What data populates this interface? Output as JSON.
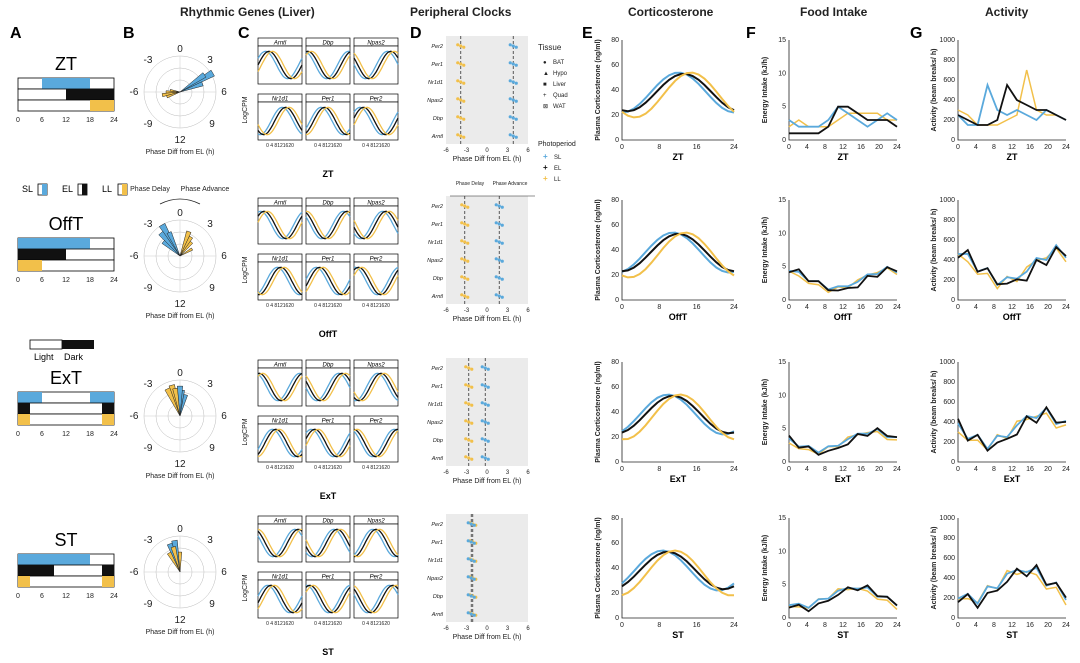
{
  "headers": {
    "rhythmic": "Rhythmic Genes (Liver)",
    "peripheral": "Peripheral Clocks",
    "cort": "Corticosterone",
    "food": "Food Intake",
    "activity": "Activity"
  },
  "panel_labels": [
    "A",
    "B",
    "C",
    "D",
    "E",
    "F",
    "G"
  ],
  "colors": {
    "SL": "#5aa9dc",
    "EL": "#111111",
    "LL": "#f2c04a"
  },
  "schedules": [
    {
      "name": "ZT",
      "bars": {
        "SL": [
          [
            6,
            18
          ]
        ],
        "EL": [
          [
            12,
            24
          ]
        ],
        "LL": [
          [
            18,
            24
          ]
        ]
      }
    },
    {
      "name": "OffT",
      "bars": {
        "SL": [
          [
            0,
            18
          ]
        ],
        "EL": [
          [
            0,
            12
          ]
        ],
        "LL": [
          [
            0,
            6
          ]
        ]
      }
    },
    {
      "name": "ExT",
      "bars": {
        "SL": [
          [
            0,
            6
          ],
          [
            18,
            24
          ]
        ],
        "EL": [
          [
            0,
            3
          ],
          [
            21,
            24
          ]
        ],
        "LL": [
          [
            0,
            3
          ],
          [
            21,
            24
          ]
        ]
      }
    },
    {
      "name": "ST",
      "bars": {
        "SL": [
          [
            0,
            18
          ]
        ],
        "EL": [
          [
            0,
            9
          ],
          [
            21,
            24
          ]
        ],
        "LL": [
          [
            0,
            3
          ],
          [
            21,
            24
          ]
        ]
      }
    }
  ],
  "axisA": [
    "0",
    "6",
    "12",
    "18",
    "24"
  ],
  "legendA": {
    "SL": "SL",
    "EL": "EL",
    "LL": "LL",
    "light": "Light",
    "dark": "Dark"
  },
  "polar": {
    "ticks": [
      "0",
      "3",
      "6",
      "9",
      "12",
      "-9",
      "-6",
      "-3"
    ],
    "xlabel": "Phase Diff from EL (h)",
    "delay": "Phase Delay",
    "advance": "Phase Advance"
  },
  "genes": [
    "Arntl",
    "Dbp",
    "Npas2",
    "Nr1d1",
    "Per1",
    "Per2"
  ],
  "genes_ylabel": "LogCPM",
  "genes_xticks": "0 4 8121620",
  "peripheral": {
    "genes": [
      "Per2",
      "Per1",
      "Nr1d1",
      "Npas2",
      "Dbp",
      "Arntl"
    ],
    "xticks": [
      "-6",
      "-3",
      "0",
      "3",
      "6"
    ],
    "xlabel": "Phase Diff from EL (h)",
    "tissue_title": "Tissue",
    "tissues": [
      "BAT",
      "Hypo",
      "Liver",
      "Quad",
      "WAT"
    ],
    "photo_title": "Photoperiod",
    "photoperiods": [
      "SL",
      "EL",
      "LL"
    ],
    "delay": "Phase Delay",
    "advance": "Phase Advance"
  },
  "cort": {
    "ylabel": "Plasma Corticosterone (ng/ml)",
    "yticks": [
      "0",
      "20",
      "40",
      "60",
      "80"
    ],
    "xticks": [
      "0",
      "8",
      "16",
      "24"
    ]
  },
  "food": {
    "ylabel": "Energy Intake (kJ/h)",
    "yticks": [
      "0",
      "5",
      "10",
      "15"
    ],
    "xticks": [
      "0",
      "4",
      "8",
      "12",
      "16",
      "20",
      "24"
    ]
  },
  "activity": {
    "ylabel": "Activity (beam breaks/ h)",
    "yticks": [
      "0",
      "200",
      "400",
      "600",
      "800",
      "1000"
    ],
    "xticks": [
      "0",
      "4",
      "8",
      "12",
      "16",
      "20",
      "24"
    ]
  },
  "chart_data": [
    {
      "type": "line",
      "panel": "E",
      "schedule": "ZT",
      "ylim": [
        0,
        80
      ],
      "series": [
        {
          "name": "SL",
          "peak_time": 10,
          "peak_value": 55
        },
        {
          "name": "EL",
          "peak_time": 11,
          "peak_value": 52
        },
        {
          "name": "LL",
          "peak_time": 13,
          "peak_value": 54
        }
      ]
    },
    {
      "type": "line",
      "panel": "F",
      "schedule": "ZT",
      "ylim": [
        0,
        15
      ],
      "series": [
        {
          "name": "SL",
          "values": [
            3,
            2,
            2,
            2,
            3,
            5,
            4,
            3,
            2,
            3,
            4,
            3
          ]
        },
        {
          "name": "EL",
          "values": [
            1,
            1,
            1,
            1,
            2,
            5,
            5,
            4,
            3,
            3,
            3,
            2
          ]
        },
        {
          "name": "LL",
          "values": [
            2,
            3,
            2,
            2,
            2,
            3,
            4,
            4,
            4,
            4,
            3,
            3
          ]
        }
      ]
    },
    {
      "type": "line",
      "panel": "G",
      "schedule": "ZT",
      "ylim": [
        0,
        1000
      ],
      "series": [
        {
          "name": "SL",
          "values": [
            250,
            150,
            150,
            550,
            300,
            250,
            300,
            250,
            200,
            300,
            250,
            200
          ]
        },
        {
          "name": "EL",
          "values": [
            250,
            200,
            150,
            150,
            200,
            550,
            400,
            350,
            300,
            300,
            250,
            200
          ]
        },
        {
          "name": "LL",
          "values": [
            300,
            250,
            150,
            150,
            150,
            200,
            250,
            700,
            300,
            250,
            250,
            200
          ]
        }
      ]
    }
  ]
}
